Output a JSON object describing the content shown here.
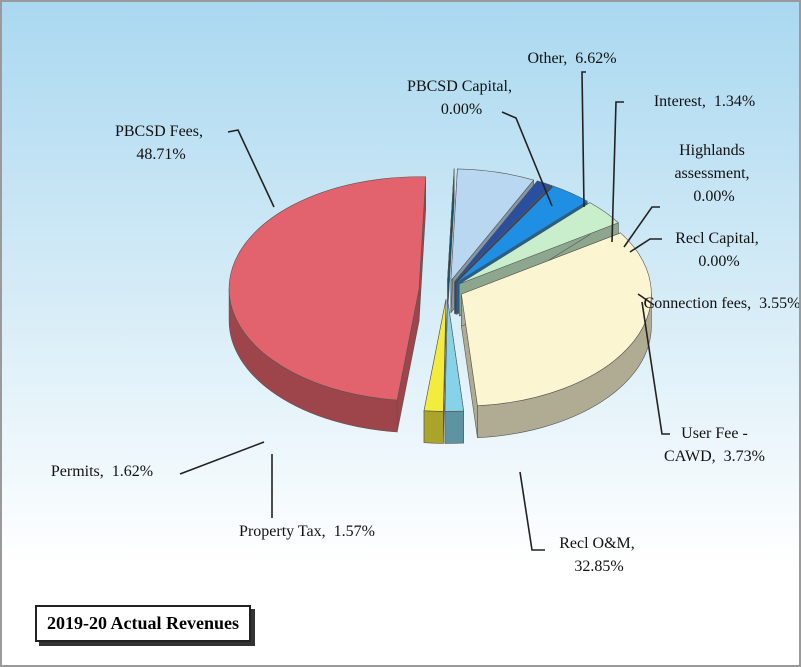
{
  "chart_data": {
    "type": "pie3d",
    "title": "2019-20 Actual Revenues",
    "categories": [
      "PBCSD Fees",
      "Permits",
      "Property Tax",
      "Recl O&M",
      "User Fee - CAWD",
      "Connection fees",
      "Recl Capital",
      "Highlands assessment",
      "Interest",
      "Other",
      "PBCSD Capital"
    ],
    "values": [
      48.71,
      1.62,
      1.57,
      32.85,
      3.73,
      3.55,
      0.0,
      0.0,
      1.34,
      6.62,
      0.0
    ],
    "value_labels": [
      "48.71%",
      "1.62%",
      "1.57%",
      "32.85%",
      "3.73%",
      "3.55%",
      "0.00%",
      "0.00%",
      "1.34%",
      "6.62%",
      "0.00%"
    ],
    "colors": [
      "#e2636d",
      "#f3ec3c",
      "#86d2e8",
      "#fcf5d2",
      "#c9eecb",
      "#1e8fe2",
      "#3a62b8",
      "#2f4f9a",
      "#2a4fa0",
      "#b9d7f0",
      "#1a7090"
    ]
  }
}
